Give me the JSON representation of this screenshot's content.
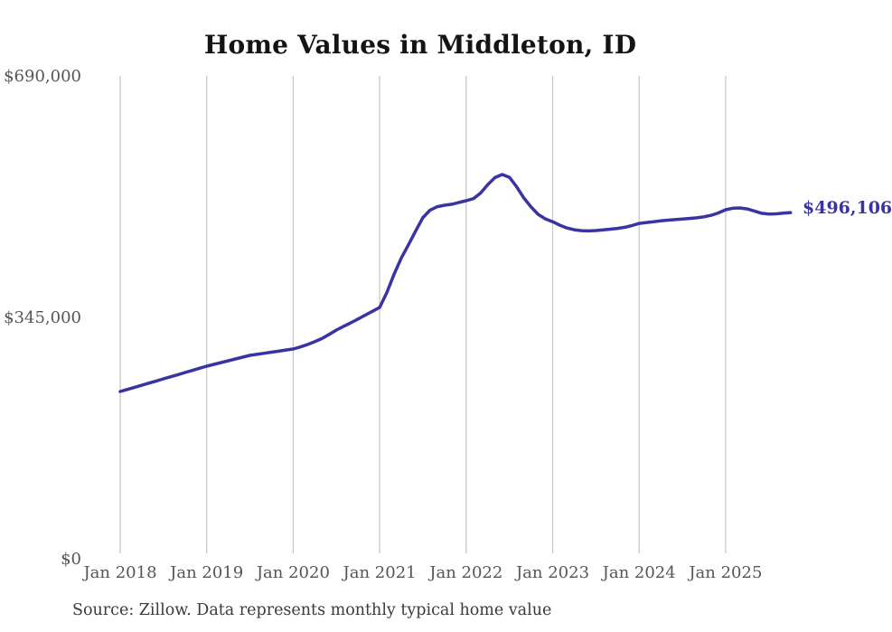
{
  "title": "Home Values in Middleton, ID",
  "source_note": "Source: Zillow. Data represents monthly typical home value",
  "end_label": "$496,106",
  "colors": {
    "line": "#3a34a3",
    "grid": "#c9c9c9",
    "axis_text": "#565656",
    "title_text": "#141414",
    "source_text": "#3b3b3b"
  },
  "chart_data": {
    "type": "line",
    "title": "Home Values in Middleton, ID",
    "xlabel": "",
    "ylabel": "",
    "grid": "vertical-only",
    "legend": "none",
    "ylim": [
      0,
      690000
    ],
    "y_ticks": [
      {
        "label": "$0",
        "value": 0
      },
      {
        "label": "$345,000",
        "value": 345000
      },
      {
        "label": "$690,000",
        "value": 690000
      }
    ],
    "x_ticks": [
      {
        "label": "Jan 2018",
        "month_index": 0
      },
      {
        "label": "Jan 2019",
        "month_index": 12
      },
      {
        "label": "Jan 2020",
        "month_index": 24
      },
      {
        "label": "Jan 2021",
        "month_index": 36
      },
      {
        "label": "Jan 2022",
        "month_index": 48
      },
      {
        "label": "Jan 2023",
        "month_index": 60
      },
      {
        "label": "Jan 2024",
        "month_index": 72
      },
      {
        "label": "Jan 2025",
        "month_index": 84
      }
    ],
    "series": [
      {
        "name": "Monthly typical home value",
        "start": "2018-01",
        "frequency": "monthly",
        "values": [
          240300,
          243300,
          246300,
          249300,
          252300,
          255300,
          258400,
          261400,
          264400,
          267500,
          270500,
          273500,
          276500,
          279100,
          281700,
          284300,
          286900,
          289500,
          292000,
          293500,
          295000,
          296500,
          298000,
          299600,
          301100,
          304000,
          307500,
          311500,
          316000,
          322000,
          328200,
          333500,
          338500,
          344000,
          349500,
          355000,
          360500,
          382000,
          408000,
          431000,
          450000,
          470000,
          489000,
          499500,
          504500,
          506500,
          508000,
          510500,
          513000,
          516000,
          524000,
          536000,
          546000,
          550500,
          546500,
          533000,
          517000,
          504000,
          493500,
          487000,
          483000,
          478000,
          474000,
          471500,
          470200,
          469800,
          470300,
          471200,
          472300,
          473500,
          475000,
          477500,
          480500,
          481800,
          483000,
          484200,
          485200,
          486000,
          486800,
          487600,
          488600,
          490000,
          492200,
          495500,
          500000,
          502200,
          502600,
          501200,
          498200,
          495000,
          493800,
          494300,
          495300,
          496106
        ]
      }
    ],
    "last_point": {
      "date": "2025-10",
      "value": 496106,
      "label": "$496,106"
    }
  }
}
